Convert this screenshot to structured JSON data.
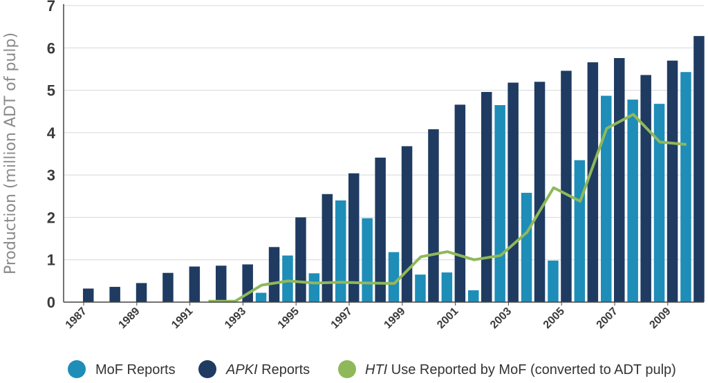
{
  "chart_data": {
    "type": "bar",
    "xlabel": "",
    "ylabel": "Production (million ADT of pulp)",
    "ylim": [
      0,
      7
    ],
    "yticks": [
      "0",
      "1",
      "2",
      "3",
      "4",
      "5",
      "6",
      "7"
    ],
    "categories": [
      "1987",
      "1988",
      "1989",
      "1990",
      "1991",
      "1992",
      "1993",
      "1994",
      "1995",
      "1996",
      "1997",
      "1998",
      "1999",
      "2000",
      "2001",
      "2002",
      "2003",
      "2004",
      "2005",
      "2006",
      "2007",
      "2008",
      "2009",
      "2010"
    ],
    "xtick_labels": [
      "1987",
      "1989",
      "1991",
      "1993",
      "1995",
      "1997",
      "1999",
      "2001",
      "2003",
      "2005",
      "2007",
      "2009"
    ],
    "grid": "horizontal",
    "legend_position": "bottom",
    "series": [
      {
        "name": "MoF Reports",
        "kind": "bar",
        "color": "#1e8db8",
        "values": [
          null,
          null,
          null,
          null,
          null,
          0.03,
          0.03,
          0.22,
          1.1,
          0.68,
          2.4,
          1.98,
          1.18,
          0.65,
          0.7,
          0.28,
          4.65,
          2.58,
          0.98,
          3.35,
          4.87,
          4.78,
          4.68,
          5.43
        ]
      },
      {
        "name": "APKI Reports",
        "kind": "bar",
        "color": "#1f3b61",
        "values": [
          0.32,
          0.36,
          0.45,
          0.69,
          0.84,
          0.86,
          0.89,
          1.3,
          2.0,
          2.55,
          3.04,
          3.41,
          3.68,
          4.08,
          4.66,
          4.96,
          5.18,
          5.2,
          5.46,
          5.66,
          5.76,
          5.36,
          5.7,
          6.28
        ]
      },
      {
        "name": "Use Reported by MoF (converted to ADT pulp)",
        "name_prefix": "HTI",
        "kind": "line",
        "color": "#8fb85a",
        "values": [
          null,
          null,
          null,
          null,
          null,
          0.02,
          0.02,
          0.4,
          0.5,
          0.45,
          0.47,
          0.45,
          0.44,
          1.07,
          1.19,
          1.0,
          1.1,
          1.65,
          2.7,
          2.38,
          4.1,
          4.43,
          3.78,
          3.72
        ]
      }
    ],
    "legend": [
      {
        "key": "mof",
        "label": "MoF Reports",
        "italic_prefix": ""
      },
      {
        "key": "apki",
        "label": " Reports",
        "italic_prefix": "APKI"
      },
      {
        "key": "hti",
        "label": " Use Reported by MoF (converted to ADT pulp)",
        "italic_prefix": "HTI"
      }
    ]
  }
}
